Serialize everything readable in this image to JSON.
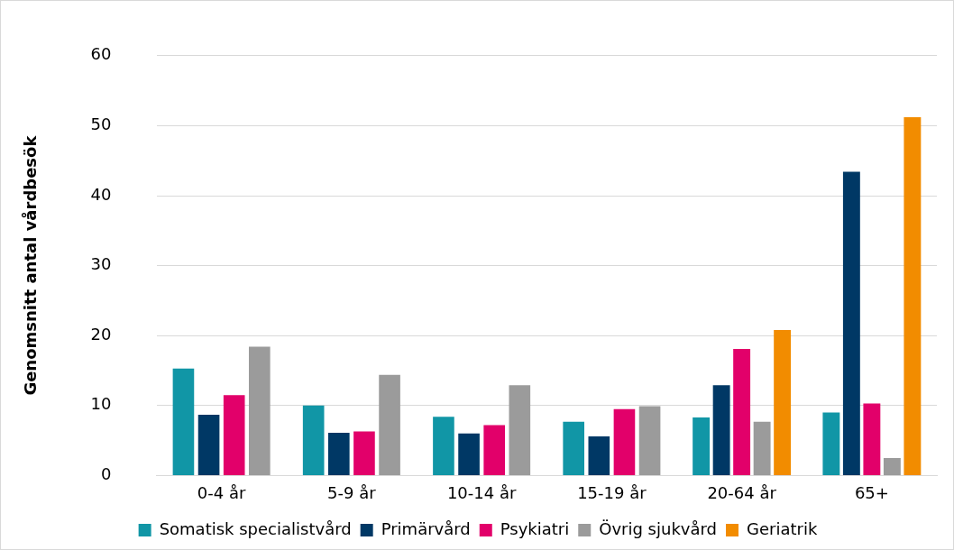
{
  "chart_data": {
    "type": "bar",
    "ylabel": "Genomsnitt antal vårdbesök",
    "categories": [
      "0-4 år",
      "5-9 år",
      "10-14 år",
      "15-19 år",
      "20-64 år",
      "65+"
    ],
    "series": [
      {
        "name": "Somatisk specialistvård",
        "color": "#1196a6",
        "values": [
          15.3,
          10.0,
          8.4,
          7.7,
          8.3,
          9.0
        ]
      },
      {
        "name": "Primärvård",
        "color": "#003865",
        "values": [
          8.7,
          6.1,
          6.0,
          5.6,
          12.9,
          43.4
        ]
      },
      {
        "name": "Psykiatri",
        "color": "#e2006a",
        "values": [
          11.5,
          6.3,
          7.2,
          9.5,
          18.1,
          10.3
        ]
      },
      {
        "name": "Övrig sjukvård",
        "color": "#9b9b9b",
        "values": [
          18.4,
          14.4,
          12.9,
          9.9,
          7.7,
          2.5
        ]
      },
      {
        "name": "Geriatrik",
        "color": "#f28c00",
        "values": [
          null,
          null,
          null,
          null,
          20.8,
          51.2
        ]
      }
    ],
    "ylim": [
      0,
      60
    ],
    "yticks": [
      0,
      10,
      20,
      30,
      40,
      50,
      60
    ],
    "grid": "y",
    "legend": "bottom"
  }
}
